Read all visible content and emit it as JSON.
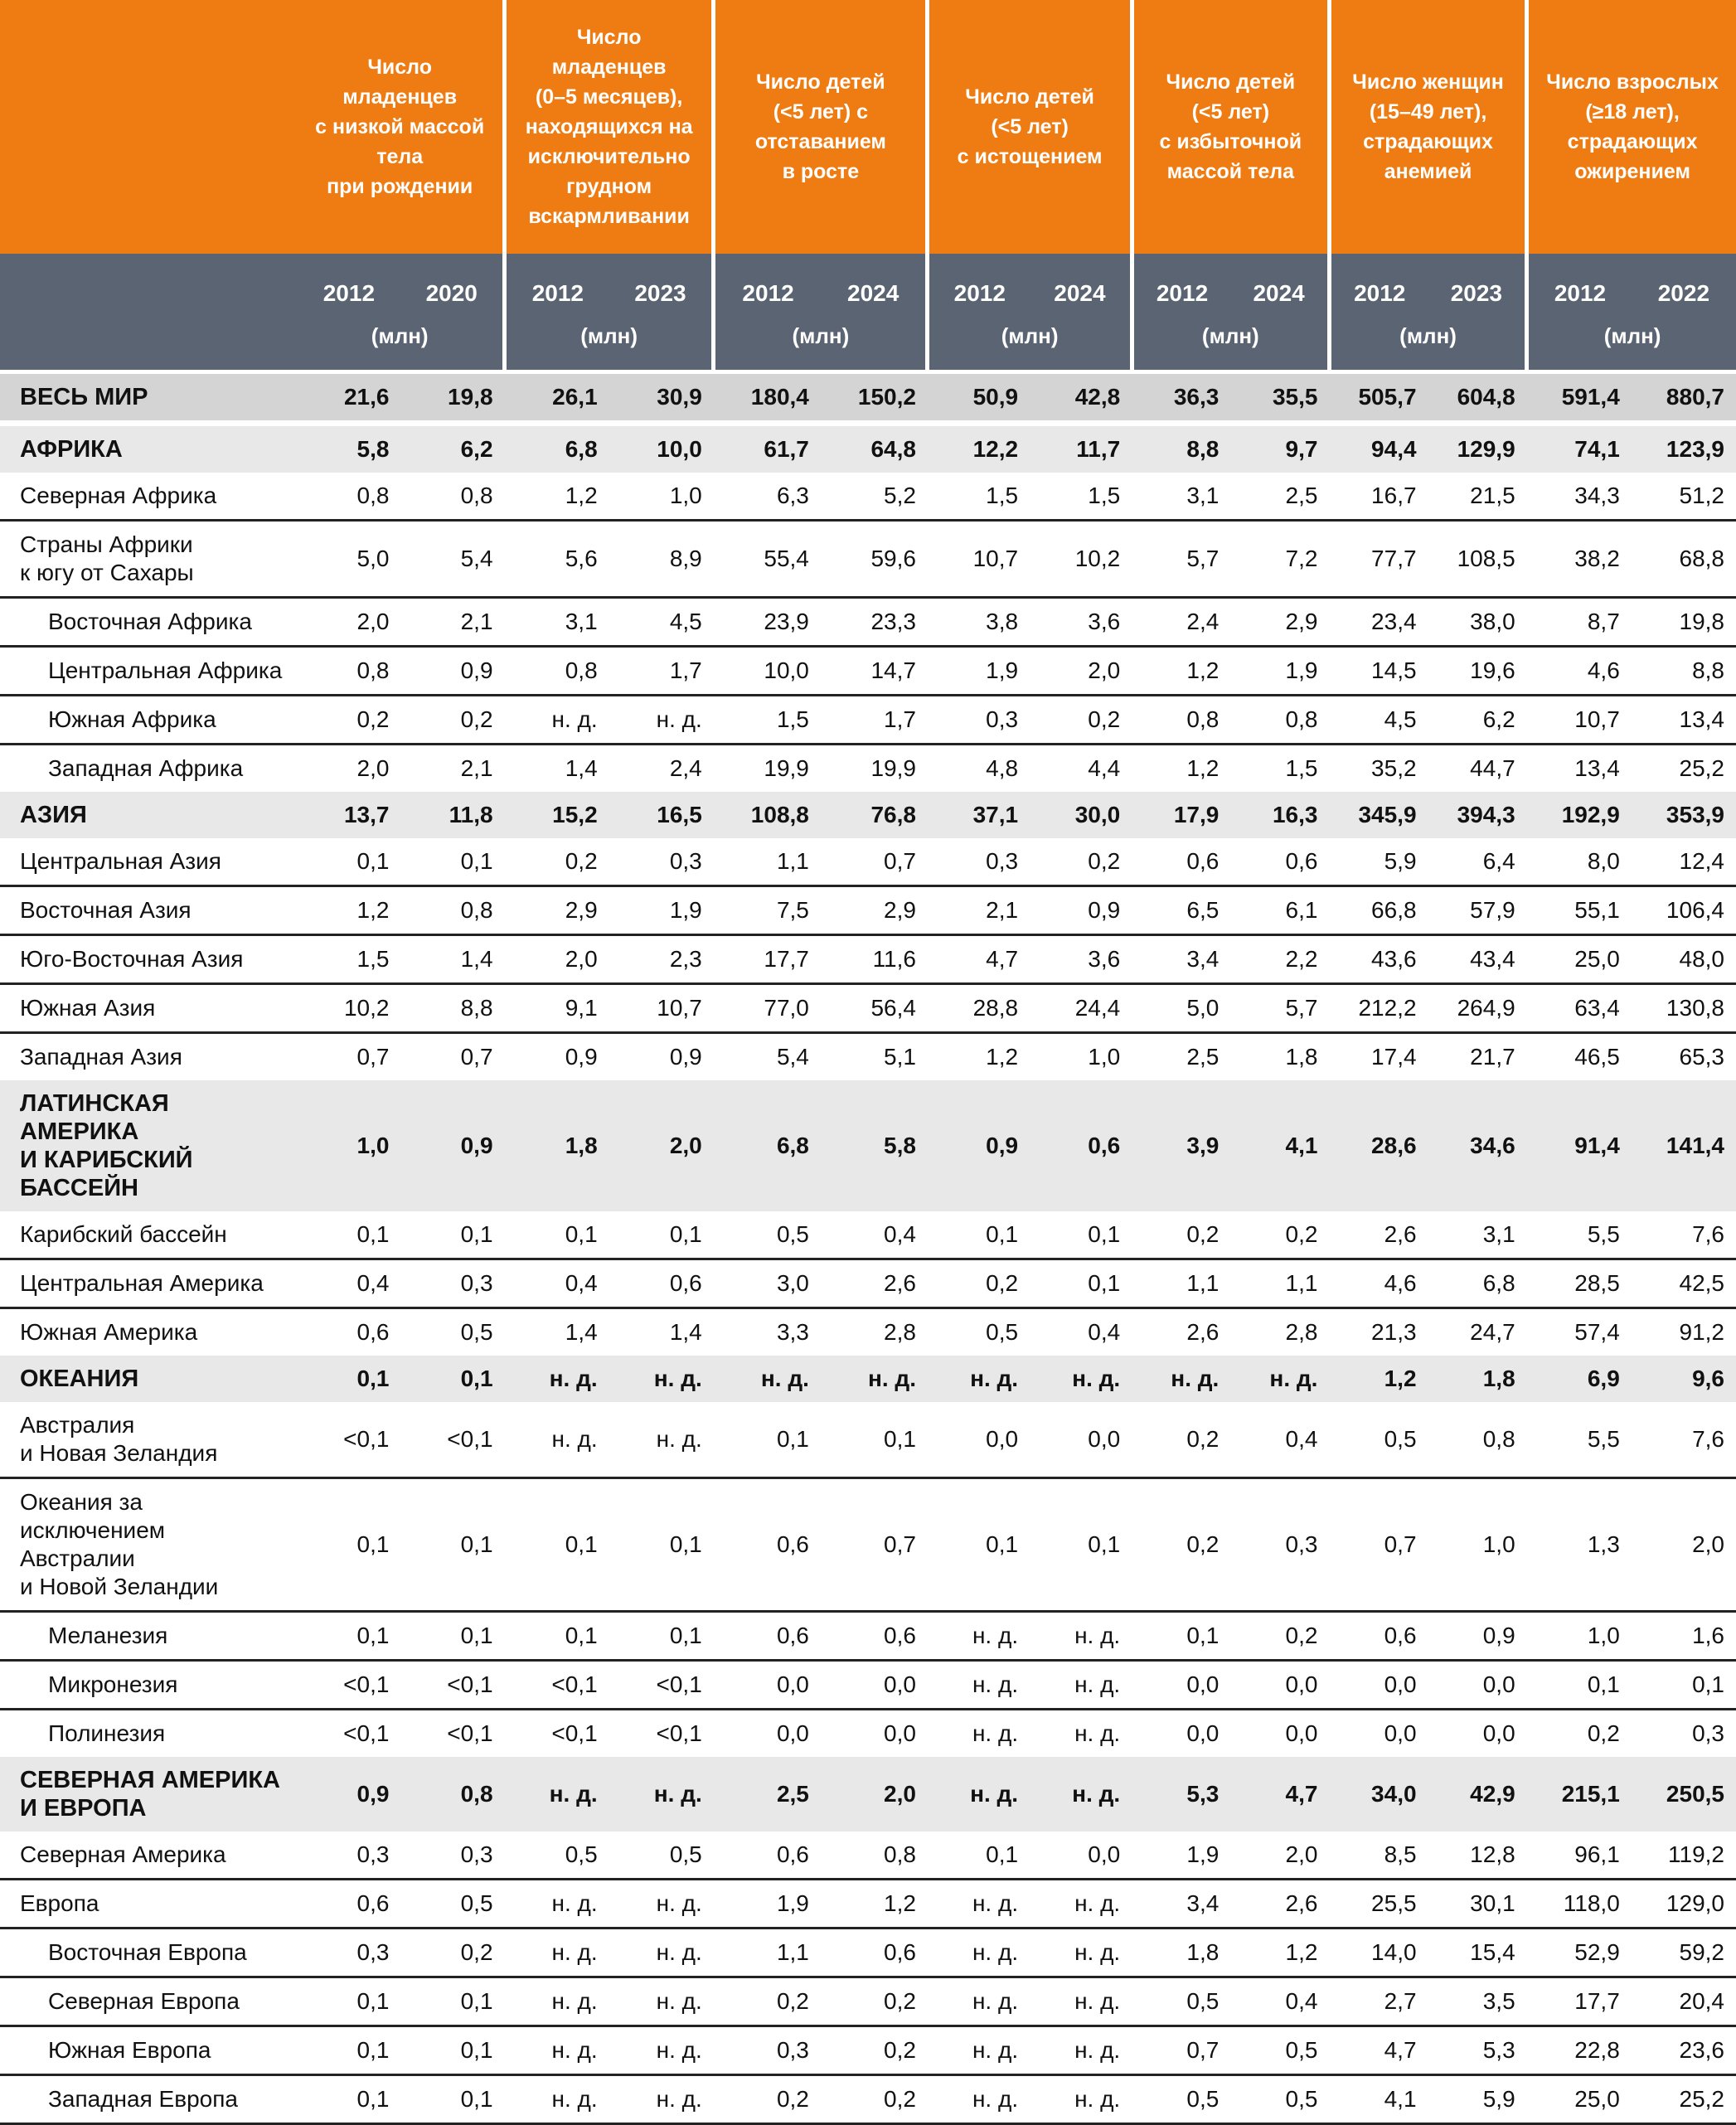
{
  "header": {
    "unit": "(млн)",
    "groups": [
      {
        "title": "Число\nмладенцев\nс низкой массой\nтела\nпри рождении",
        "years": [
          "2012",
          "2020"
        ]
      },
      {
        "title": "Число\nмладенцев\n(0–5 месяцев),\nнаходящихся на\nисключительно\nгрудном\nвскармливании",
        "years": [
          "2012",
          "2023"
        ]
      },
      {
        "title": "Число детей\n(<5 лет) с\nотставанием\nв росте",
        "years": [
          "2012",
          "2024"
        ]
      },
      {
        "title": "Число детей\n(<5 лет)\nс истощением",
        "years": [
          "2012",
          "2024"
        ]
      },
      {
        "title": "Число детей\n(<5 лет)\nс избыточной\nмассой тела",
        "years": [
          "2012",
          "2024"
        ]
      },
      {
        "title": "Число женщин\n(15–49 лет),\nстрадающих\nанемией",
        "years": [
          "2012",
          "2023"
        ]
      },
      {
        "title": "Число взрослых\n(≥18 лет),\nстрадающих\nожирением",
        "years": [
          "2012",
          "2022"
        ]
      }
    ]
  },
  "na_value": "н. д.",
  "rows": [
    {
      "label": "ВЕСЬ МИР",
      "type": "world",
      "values": [
        "21,6",
        "19,8",
        "26,1",
        "30,9",
        "180,4",
        "150,2",
        "50,9",
        "42,8",
        "36,3",
        "35,5",
        "505,7",
        "604,8",
        "591,4",
        "880,7"
      ]
    },
    {
      "label": "АФРИКА",
      "type": "section",
      "values": [
        "5,8",
        "6,2",
        "6,8",
        "10,0",
        "61,7",
        "64,8",
        "12,2",
        "11,7",
        "8,8",
        "9,7",
        "94,4",
        "129,9",
        "74,1",
        "123,9"
      ]
    },
    {
      "label": "Северная Африка",
      "type": "region",
      "values": [
        "0,8",
        "0,8",
        "1,2",
        "1,0",
        "6,3",
        "5,2",
        "1,5",
        "1,5",
        "3,1",
        "2,5",
        "16,7",
        "21,5",
        "34,3",
        "51,2"
      ]
    },
    {
      "label": "Страны Африки\nк югу от Сахары",
      "type": "region",
      "values": [
        "5,0",
        "5,4",
        "5,6",
        "8,9",
        "55,4",
        "59,6",
        "10,7",
        "10,2",
        "5,7",
        "7,2",
        "77,7",
        "108,5",
        "38,2",
        "68,8"
      ]
    },
    {
      "label": "Восточная Африка",
      "type": "subregion",
      "values": [
        "2,0",
        "2,1",
        "3,1",
        "4,5",
        "23,9",
        "23,3",
        "3,8",
        "3,6",
        "2,4",
        "2,9",
        "23,4",
        "38,0",
        "8,7",
        "19,8"
      ]
    },
    {
      "label": "Центральная Африка",
      "type": "subregion",
      "values": [
        "0,8",
        "0,9",
        "0,8",
        "1,7",
        "10,0",
        "14,7",
        "1,9",
        "2,0",
        "1,2",
        "1,9",
        "14,5",
        "19,6",
        "4,6",
        "8,8"
      ]
    },
    {
      "label": "Южная Африка",
      "type": "subregion",
      "values": [
        "0,2",
        "0,2",
        "н. д.",
        "н. д.",
        "1,5",
        "1,7",
        "0,3",
        "0,2",
        "0,8",
        "0,8",
        "4,5",
        "6,2",
        "10,7",
        "13,4"
      ]
    },
    {
      "label": "Западная Африка",
      "type": "subregion",
      "values": [
        "2,0",
        "2,1",
        "1,4",
        "2,4",
        "19,9",
        "19,9",
        "4,8",
        "4,4",
        "1,2",
        "1,5",
        "35,2",
        "44,7",
        "13,4",
        "25,2"
      ]
    },
    {
      "label": "АЗИЯ",
      "type": "section",
      "values": [
        "13,7",
        "11,8",
        "15,2",
        "16,5",
        "108,8",
        "76,8",
        "37,1",
        "30,0",
        "17,9",
        "16,3",
        "345,9",
        "394,3",
        "192,9",
        "353,9"
      ]
    },
    {
      "label": "Центральная Азия",
      "type": "region",
      "values": [
        "0,1",
        "0,1",
        "0,2",
        "0,3",
        "1,1",
        "0,7",
        "0,3",
        "0,2",
        "0,6",
        "0,6",
        "5,9",
        "6,4",
        "8,0",
        "12,4"
      ]
    },
    {
      "label": "Восточная Азия",
      "type": "region",
      "values": [
        "1,2",
        "0,8",
        "2,9",
        "1,9",
        "7,5",
        "2,9",
        "2,1",
        "0,9",
        "6,5",
        "6,1",
        "66,8",
        "57,9",
        "55,1",
        "106,4"
      ]
    },
    {
      "label": "Юго-Восточная Азия",
      "type": "region",
      "values": [
        "1,5",
        "1,4",
        "2,0",
        "2,3",
        "17,7",
        "11,6",
        "4,7",
        "3,6",
        "3,4",
        "2,2",
        "43,6",
        "43,4",
        "25,0",
        "48,0"
      ]
    },
    {
      "label": "Южная Азия",
      "type": "region",
      "values": [
        "10,2",
        "8,8",
        "9,1",
        "10,7",
        "77,0",
        "56,4",
        "28,8",
        "24,4",
        "5,0",
        "5,7",
        "212,2",
        "264,9",
        "63,4",
        "130,8"
      ]
    },
    {
      "label": "Западная Азия",
      "type": "region",
      "values": [
        "0,7",
        "0,7",
        "0,9",
        "0,9",
        "5,4",
        "5,1",
        "1,2",
        "1,0",
        "2,5",
        "1,8",
        "17,4",
        "21,7",
        "46,5",
        "65,3"
      ]
    },
    {
      "label": "ЛАТИНСКАЯ АМЕРИКА\nИ КАРИБСКИЙ\nБАССЕЙН",
      "type": "section",
      "values": [
        "1,0",
        "0,9",
        "1,8",
        "2,0",
        "6,8",
        "5,8",
        "0,9",
        "0,6",
        "3,9",
        "4,1",
        "28,6",
        "34,6",
        "91,4",
        "141,4"
      ]
    },
    {
      "label": "Карибский бассейн",
      "type": "region",
      "values": [
        "0,1",
        "0,1",
        "0,1",
        "0,1",
        "0,5",
        "0,4",
        "0,1",
        "0,1",
        "0,2",
        "0,2",
        "2,6",
        "3,1",
        "5,5",
        "7,6"
      ]
    },
    {
      "label": "Центральная Америка",
      "type": "region",
      "values": [
        "0,4",
        "0,3",
        "0,4",
        "0,6",
        "3,0",
        "2,6",
        "0,2",
        "0,1",
        "1,1",
        "1,1",
        "4,6",
        "6,8",
        "28,5",
        "42,5"
      ]
    },
    {
      "label": "Южная Америка",
      "type": "region",
      "values": [
        "0,6",
        "0,5",
        "1,4",
        "1,4",
        "3,3",
        "2,8",
        "0,5",
        "0,4",
        "2,6",
        "2,8",
        "21,3",
        "24,7",
        "57,4",
        "91,2"
      ]
    },
    {
      "label": "ОКЕАНИЯ",
      "type": "section",
      "values": [
        "0,1",
        "0,1",
        "н. д.",
        "н. д.",
        "н. д.",
        "н. д.",
        "н. д.",
        "н. д.",
        "н. д.",
        "н. д.",
        "1,2",
        "1,8",
        "6,9",
        "9,6"
      ]
    },
    {
      "label": "Австралия\nи Новая Зеландия",
      "type": "region",
      "values": [
        "<0,1",
        "<0,1",
        "н. д.",
        "н. д.",
        "0,1",
        "0,1",
        "0,0",
        "0,0",
        "0,2",
        "0,4",
        "0,5",
        "0,8",
        "5,5",
        "7,6"
      ]
    },
    {
      "label": "Океания за исключением\nАвстралии\nи Новой Зеландии",
      "type": "region",
      "values": [
        "0,1",
        "0,1",
        "0,1",
        "0,1",
        "0,6",
        "0,7",
        "0,1",
        "0,1",
        "0,2",
        "0,3",
        "0,7",
        "1,0",
        "1,3",
        "2,0"
      ]
    },
    {
      "label": "Меланезия",
      "type": "subregion",
      "values": [
        "0,1",
        "0,1",
        "0,1",
        "0,1",
        "0,6",
        "0,6",
        "н. д.",
        "н. д.",
        "0,1",
        "0,2",
        "0,6",
        "0,9",
        "1,0",
        "1,6"
      ]
    },
    {
      "label": "Микронезия",
      "type": "subregion",
      "values": [
        "<0,1",
        "<0,1",
        "<0,1",
        "<0,1",
        "0,0",
        "0,0",
        "н. д.",
        "н. д.",
        "0,0",
        "0,0",
        "0,0",
        "0,0",
        "0,1",
        "0,1"
      ]
    },
    {
      "label": "Полинезия",
      "type": "subregion",
      "values": [
        "<0,1",
        "<0,1",
        "<0,1",
        "<0,1",
        "0,0",
        "0,0",
        "н. д.",
        "н. д.",
        "0,0",
        "0,0",
        "0,0",
        "0,0",
        "0,2",
        "0,3"
      ]
    },
    {
      "label": "СЕВЕРНАЯ АМЕРИКА\nИ ЕВРОПА",
      "type": "section",
      "values": [
        "0,9",
        "0,8",
        "н. д.",
        "н. д.",
        "2,5",
        "2,0",
        "н. д.",
        "н. д.",
        "5,3",
        "4,7",
        "34,0",
        "42,9",
        "215,1",
        "250,5"
      ]
    },
    {
      "label": "Северная Америка",
      "type": "region",
      "values": [
        "0,3",
        "0,3",
        "0,5",
        "0,5",
        "0,6",
        "0,8",
        "0,1",
        "0,0",
        "1,9",
        "2,0",
        "8,5",
        "12,8",
        "96,1",
        "119,2"
      ]
    },
    {
      "label": "Европа",
      "type": "region",
      "values": [
        "0,6",
        "0,5",
        "н. д.",
        "н. д.",
        "1,9",
        "1,2",
        "н. д.",
        "н. д.",
        "3,4",
        "2,6",
        "25,5",
        "30,1",
        "118,0",
        "129,0"
      ]
    },
    {
      "label": "Восточная Европа",
      "type": "subregion",
      "values": [
        "0,3",
        "0,2",
        "н. д.",
        "н. д.",
        "1,1",
        "0,6",
        "н. д.",
        "н. д.",
        "1,8",
        "1,2",
        "14,0",
        "15,4",
        "52,9",
        "59,2"
      ]
    },
    {
      "label": "Северная Европа",
      "type": "subregion",
      "values": [
        "0,1",
        "0,1",
        "н. д.",
        "н. д.",
        "0,2",
        "0,2",
        "н. д.",
        "н. д.",
        "0,5",
        "0,4",
        "2,7",
        "3,5",
        "17,7",
        "20,4"
      ]
    },
    {
      "label": "Южная Европа",
      "type": "subregion",
      "values": [
        "0,1",
        "0,1",
        "н. д.",
        "н. д.",
        "0,3",
        "0,2",
        "н. д.",
        "н. д.",
        "0,7",
        "0,5",
        "4,7",
        "5,3",
        "22,8",
        "23,6"
      ]
    },
    {
      "label": "Западная Европа",
      "type": "subregion",
      "values": [
        "0,1",
        "0,1",
        "н. д.",
        "н. д.",
        "0,2",
        "0,2",
        "н. д.",
        "н. д.",
        "0,5",
        "0,5",
        "4,1",
        "5,9",
        "25,0",
        "25,2"
      ]
    }
  ],
  "colors": {
    "header_orange": "#ef7c12",
    "subheader_slate": "#5a6472",
    "world_row_bg": "#d4d4d4",
    "section_row_bg": "#e8e8e8",
    "divider": "#222222"
  }
}
